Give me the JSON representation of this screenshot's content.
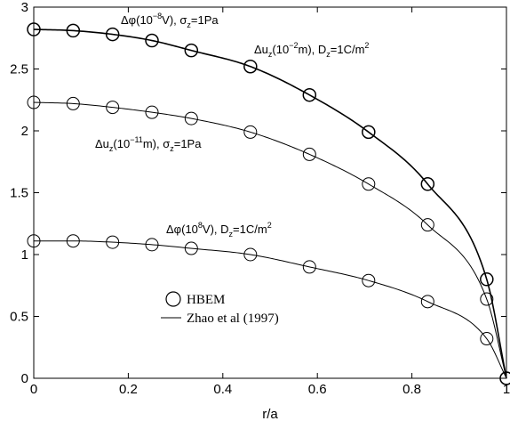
{
  "chart_data": {
    "type": "line",
    "xlabel": "r/a",
    "ylabel": "",
    "xlim": [
      0,
      1
    ],
    "ylim": [
      0,
      3
    ],
    "x_ticks": [
      "0",
      "0.2",
      "0.4",
      "0.6",
      "0.8",
      "1"
    ],
    "y_ticks": [
      "0",
      "0.5",
      "1",
      "1.5",
      "2",
      "2.5",
      "3"
    ],
    "grid": false,
    "legend_position": "lower-left",
    "legend": {
      "markers_label": "HBEM",
      "line_label": "Zhao et al (1997)"
    },
    "x_markers": [
      0,
      0.0833,
      0.1667,
      0.25,
      0.3333,
      0.4583,
      0.5833,
      0.7083,
      0.8333,
      0.9583,
      1.0
    ],
    "series": [
      {
        "values": [
          2.82,
          2.81,
          2.78,
          2.73,
          2.65,
          2.52,
          2.29,
          1.99,
          1.57,
          0.8,
          0.0
        ],
        "annotations": [
          {
            "pre": "Δφ(10",
            "sup": "−8",
            "mid": "V), σ",
            "sub": "z",
            "post": "=1Pa"
          },
          {
            "pre": "Δu",
            "sub": "z",
            "mid": "(10",
            "sup": "−2",
            "post": "m), D",
            "sub2": "z",
            "post2": "=1C/m",
            "sup2": "2"
          }
        ]
      },
      {
        "values": [
          2.23,
          2.22,
          2.19,
          2.15,
          2.1,
          1.99,
          1.81,
          1.57,
          1.24,
          0.64,
          0.0
        ],
        "annotations": [
          {
            "pre": "Δu",
            "sub": "z",
            "mid": "(10",
            "sup": "−11",
            "post": "m), σ",
            "sub2": "z",
            "post2": "=1Pa"
          }
        ]
      },
      {
        "values": [
          1.11,
          1.11,
          1.1,
          1.08,
          1.05,
          1.0,
          0.9,
          0.79,
          0.62,
          0.32,
          0.0
        ],
        "annotations": [
          {
            "pre": "Δφ(10",
            "sup": "8",
            "mid": "V), D",
            "sub": "z",
            "post": "=1C/m",
            "sup2": "2"
          }
        ]
      }
    ]
  }
}
